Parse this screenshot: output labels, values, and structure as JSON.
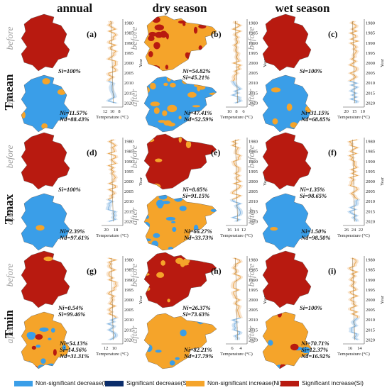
{
  "columns": [
    "annual",
    "dry season",
    "wet season"
  ],
  "rows": [
    "Tmean",
    "Tmax",
    "Tmin"
  ],
  "periods": {
    "before": "before",
    "after": "after"
  },
  "year_label": "Year",
  "colors": {
    "non_sig_decrease": "#3a9ee8",
    "sig_decrease": "#0b2d6b",
    "non_sig_increase": "#f5a42a",
    "sig_increase": "#b81a10",
    "line": "#e8a44a",
    "line_after": "#7fb3e0",
    "band": "#f6d8b8",
    "band_after": "#bcd7ef"
  },
  "legend": [
    {
      "label": "Non-significant decrease(Nd)",
      "color_key": "non_sig_decrease"
    },
    {
      "label": "Significant decrease(Sd)",
      "color_key": "sig_decrease"
    },
    {
      "label": "Non-significant increase(Ni)",
      "color_key": "non_sig_increase"
    },
    {
      "label": "Significant increase(Si)",
      "color_key": "sig_increase"
    }
  ],
  "chart_data": [
    {
      "type": "line",
      "panel": "(a)",
      "row": "Tmean",
      "column": "annual",
      "before_stats": [
        "Si=100%"
      ],
      "after_stats": [
        "Ni=11.57%",
        "Nd=88.43%"
      ],
      "xlabel": "Temperature (°C)",
      "x_ticks": [
        12,
        10,
        8
      ],
      "x_range": [
        13,
        7
      ],
      "y_ticks": [
        1980,
        1985,
        1990,
        1995,
        2000,
        2005,
        2010,
        2015,
        2020
      ],
      "y_range": [
        1978,
        2022
      ],
      "before_map": [
        [
          "sig_increase",
          1
        ]
      ],
      "after_map": [
        [
          "non_sig_decrease",
          0.88
        ],
        [
          "non_sig_increase",
          0.12
        ]
      ]
    },
    {
      "type": "line",
      "panel": "(b)",
      "row": "Tmean",
      "column": "dry season",
      "before_stats": [
        "Ni=54.82%",
        "Si=45.21%"
      ],
      "after_stats": [
        "Ni=47.41%",
        "Nd=52.59%"
      ],
      "xlabel": "Temperature (°C)",
      "x_ticks": [
        10,
        8,
        6
      ],
      "x_range": [
        11,
        5
      ],
      "y_ticks": [
        1980,
        1985,
        1990,
        1995,
        2000,
        2005,
        2010,
        2015,
        2020
      ],
      "y_range": [
        1978,
        2022
      ],
      "before_map": [
        [
          "non_sig_increase",
          0.55
        ],
        [
          "sig_increase",
          0.45
        ]
      ],
      "after_map": [
        [
          "non_sig_decrease",
          0.53
        ],
        [
          "non_sig_increase",
          0.47
        ]
      ]
    },
    {
      "type": "line",
      "panel": "(c)",
      "row": "Tmean",
      "column": "wet season",
      "before_stats": [
        "Si=100%"
      ],
      "after_stats": [
        "Ni=31.15%",
        "Nd=68.85%"
      ],
      "xlabel": "Temperature (°C)",
      "x_ticks": [
        20,
        15,
        10
      ],
      "x_range": [
        22,
        9
      ],
      "y_ticks": [
        1980,
        1985,
        1990,
        1995,
        2000,
        2005,
        2010,
        2015,
        2020
      ],
      "y_range": [
        1978,
        2022
      ],
      "before_map": [
        [
          "sig_increase",
          1
        ]
      ],
      "after_map": [
        [
          "non_sig_decrease",
          0.69
        ],
        [
          "non_sig_increase",
          0.31
        ]
      ]
    },
    {
      "type": "line",
      "panel": "(d)",
      "row": "Tmax",
      "column": "annual",
      "before_stats": [
        "Si=100%"
      ],
      "after_stats": [
        "Ni=2.39%",
        "Nd=97.61%"
      ],
      "xlabel": "Temperature (°C)",
      "x_ticks": [
        20,
        18
      ],
      "x_range": [
        21,
        16.5
      ],
      "y_ticks": [
        1980,
        1985,
        1990,
        1995,
        2000,
        2005,
        2010,
        2015,
        2020
      ],
      "y_range": [
        1978,
        2022
      ],
      "before_map": [
        [
          "sig_increase",
          1
        ]
      ],
      "after_map": [
        [
          "non_sig_decrease",
          0.98
        ],
        [
          "non_sig_increase",
          0.02
        ]
      ]
    },
    {
      "type": "line",
      "panel": "(e)",
      "row": "Tmax",
      "column": "dry season",
      "before_stats": [
        "Ni=8.85%",
        "Si=91.15%"
      ],
      "after_stats": [
        "Ni=66.27%",
        "Nd=33.73%"
      ],
      "xlabel": "Temperature (°C)",
      "x_ticks": [
        16,
        14,
        12
      ],
      "x_range": [
        17,
        11
      ],
      "y_ticks": [
        1980,
        1985,
        1990,
        1995,
        2000,
        2005,
        2010,
        2015,
        2020
      ],
      "y_range": [
        1978,
        2022
      ],
      "before_map": [
        [
          "sig_increase",
          0.91
        ],
        [
          "non_sig_increase",
          0.09
        ]
      ],
      "after_map": [
        [
          "non_sig_increase",
          0.66
        ],
        [
          "non_sig_decrease",
          0.34
        ]
      ]
    },
    {
      "type": "line",
      "panel": "(f)",
      "row": "Tmax",
      "column": "wet season",
      "before_stats": [
        "Ni=1.35%",
        "Si=98.65%"
      ],
      "after_stats": [
        "Ni=1.50%",
        "Nd=98.50%"
      ],
      "xlabel": "Temperature (°C)",
      "x_ticks": [
        26,
        24,
        22
      ],
      "x_range": [
        27,
        21
      ],
      "y_ticks": [
        1980,
        1985,
        1990,
        1995,
        2000,
        2005,
        2010,
        2015,
        2020
      ],
      "y_range": [
        1978,
        2022
      ],
      "before_map": [
        [
          "sig_increase",
          0.99
        ],
        [
          "non_sig_increase",
          0.01
        ]
      ],
      "after_map": [
        [
          "non_sig_decrease",
          0.98
        ],
        [
          "non_sig_increase",
          0.02
        ]
      ]
    },
    {
      "type": "line",
      "panel": "(g)",
      "row": "Tmin",
      "column": "annual",
      "before_stats": [
        "Ni=0.54%",
        "Si=99.46%"
      ],
      "after_stats": [
        "Ni=54.13%",
        "Si=14.56%",
        "Nd=31.31%"
      ],
      "xlabel": "Temperature (°C)",
      "x_ticks": [
        12,
        10
      ],
      "x_range": [
        13,
        8
      ],
      "y_ticks": [
        1980,
        1985,
        1990,
        1995,
        2000,
        2005,
        2010,
        2015,
        2020
      ],
      "y_range": [
        1978,
        2022
      ],
      "before_map": [
        [
          "sig_increase",
          0.99
        ],
        [
          "non_sig_increase",
          0.01
        ]
      ],
      "after_map": [
        [
          "non_sig_increase",
          0.54
        ],
        [
          "non_sig_decrease",
          0.31
        ],
        [
          "sig_increase",
          0.15
        ]
      ]
    },
    {
      "type": "line",
      "panel": "(h)",
      "row": "Tmin",
      "column": "dry season",
      "before_stats": [
        "Ni=26.37%",
        "Si=73.63%"
      ],
      "after_stats": [
        "Ni=82.21%",
        "Nd=17.79%"
      ],
      "xlabel": "Temperature (°C)",
      "x_ticks": [
        6,
        4
      ],
      "x_range": [
        7.5,
        2.5
      ],
      "y_ticks": [
        1980,
        1985,
        1990,
        1995,
        2000,
        2005,
        2010,
        2015,
        2020
      ],
      "y_range": [
        1978,
        2022
      ],
      "before_map": [
        [
          "sig_increase",
          0.74
        ],
        [
          "non_sig_increase",
          0.26
        ]
      ],
      "after_map": [
        [
          "non_sig_increase",
          0.82
        ],
        [
          "non_sig_decrease",
          0.18
        ]
      ]
    },
    {
      "type": "line",
      "panel": "(i)",
      "row": "Tmin",
      "column": "wet season",
      "before_stats": [
        "Si=100%"
      ],
      "after_stats": [
        "Ni=70.71%",
        "Si=12.37%",
        "Nd=16.92%"
      ],
      "xlabel": "Temperature (°C)",
      "x_ticks": [
        16,
        14
      ],
      "x_range": [
        17.5,
        13
      ],
      "y_ticks": [
        1980,
        1985,
        1990,
        1995,
        2000,
        2005,
        2010,
        2015,
        2020
      ],
      "y_range": [
        1978,
        2022
      ],
      "before_map": [
        [
          "sig_increase",
          1
        ]
      ],
      "after_map": [
        [
          "non_sig_increase",
          0.71
        ],
        [
          "non_sig_decrease",
          0.17
        ],
        [
          "sig_increase",
          0.12
        ]
      ]
    }
  ]
}
